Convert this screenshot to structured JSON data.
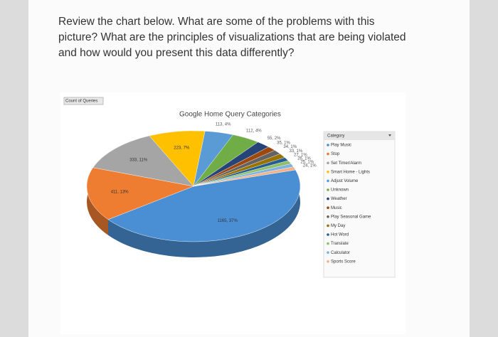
{
  "question_lines": [
    "Review the chart below. What are some of the problems with this",
    "picture? What are the principles of visualizations that are being violated",
    "and how would you present this data differently?"
  ],
  "chart_data": {
    "type": "pie",
    "title": "Google Home Query Categories",
    "field_button": "Count of Queries",
    "legend_title": "Category",
    "categories": [
      "Play Music",
      "Stop",
      "Set Timer/Alarm",
      "Smart Home - Lights",
      "Adjust Volume",
      "Unknown",
      "Weather",
      "Music",
      "Play Seasonal Game",
      "My Day",
      "Hot Word",
      "Translate",
      "Calculator",
      "Sports Score"
    ],
    "values": [
      1165,
      411,
      333,
      223,
      113,
      112,
      55,
      35,
      34,
      33,
      27,
      26,
      25,
      24
    ],
    "value_labels": [
      "1165, 37%",
      "411, 13%",
      "333, 11%",
      "223, 7%",
      "113, 4%",
      "112, 4%",
      "55, 2%",
      "35, 1%",
      "34, 1%",
      "33, 1%",
      "27, 1%",
      "26, 1%",
      "25, 1%",
      "24, 1%"
    ],
    "colors": [
      "#4a8fd4",
      "#ee7d31",
      "#a5a5a5",
      "#ffc000",
      "#5b9bd5",
      "#70ad47",
      "#264478",
      "#9e480e",
      "#636363",
      "#997300",
      "#255e91",
      "#8fbf6a",
      "#7fb2e0",
      "#f4b183"
    ]
  }
}
